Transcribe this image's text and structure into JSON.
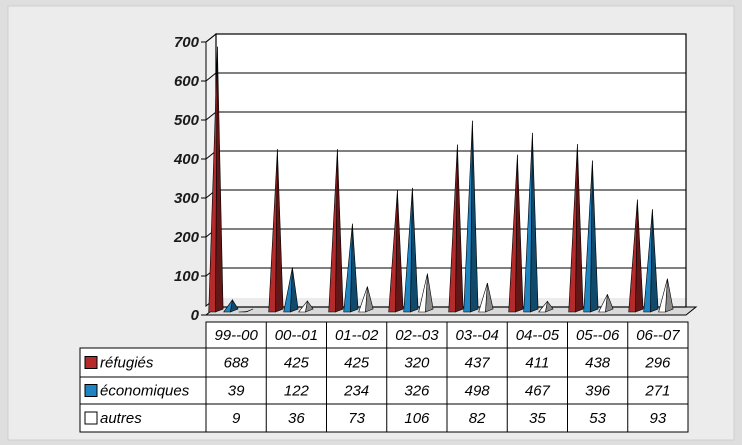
{
  "chart_data": {
    "type": "bar",
    "bar_shape": "3d-spike",
    "categories": [
      "99--00",
      "00--01",
      "01--02",
      "02--03",
      "03--04",
      "04--05",
      "05--06",
      "06--07"
    ],
    "series": [
      {
        "name": "réfugiés",
        "color": "#b52a2a",
        "values": [
          688,
          425,
          425,
          320,
          437,
          411,
          438,
          296
        ]
      },
      {
        "name": "économiques",
        "color": "#1f85c2",
        "values": [
          39,
          122,
          234,
          326,
          498,
          467,
          396,
          271
        ]
      },
      {
        "name": "autres",
        "color": "#ffffff",
        "values": [
          9,
          36,
          73,
          106,
          82,
          35,
          53,
          93
        ]
      }
    ],
    "y_ticks": [
      0,
      100,
      200,
      300,
      400,
      500,
      600,
      700
    ],
    "ylim": [
      0,
      700
    ],
    "grid": true,
    "data_table": true,
    "legend": "in-table"
  }
}
